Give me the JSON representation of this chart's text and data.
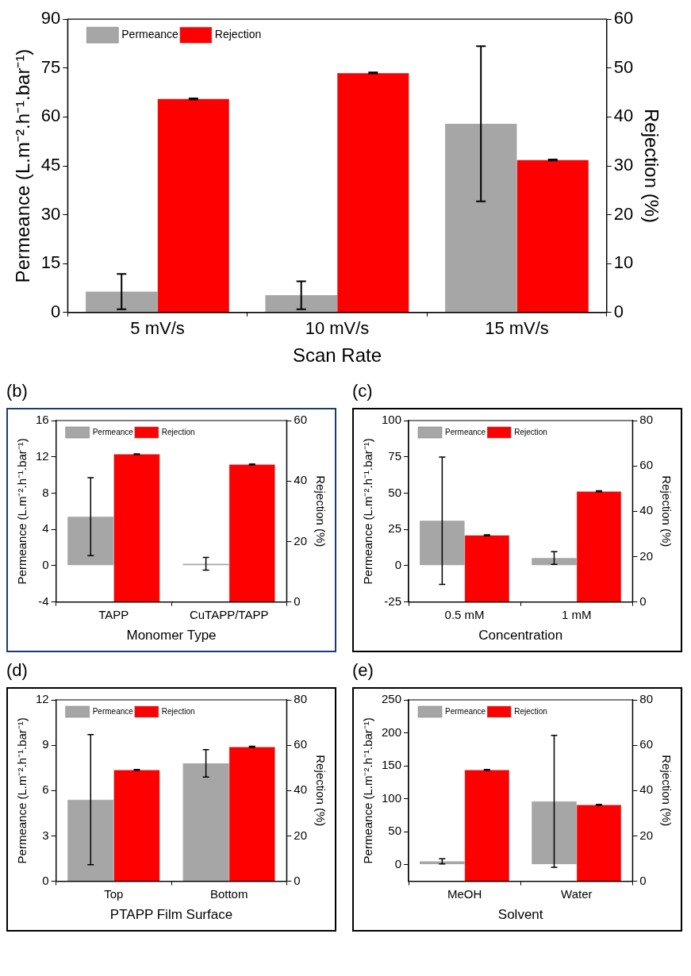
{
  "chart_data": [
    {
      "type": "bar",
      "categories": [
        "5 mV/s",
        "10 mV/s",
        "15 mV/s"
      ],
      "xlabel": "Scan Rate",
      "ylabel": "Permeance (L.m⁻².h⁻¹.bar⁻¹)",
      "y2label": "Rejection (%)",
      "ylim": [
        0,
        90
      ],
      "yticks": [
        0,
        15,
        30,
        45,
        60,
        75,
        90
      ],
      "y2lim": [
        0,
        60
      ],
      "y2ticks": [
        0,
        10,
        20,
        30,
        40,
        50,
        60
      ],
      "legend": "top left",
      "grid": false,
      "series": [
        {
          "name": "Permeance",
          "color": "#a6a6a6",
          "values": [
            6.4,
            5.3,
            57.9
          ],
          "errors": [
            5.4,
            4.3,
            23.8
          ]
        },
        {
          "name": "Rejection",
          "color": "#ff0000",
          "values": [
            43.7,
            49.0,
            31.2
          ],
          "errors": [
            0.1,
            0.1,
            0.1
          ],
          "axis": "y2"
        }
      ]
    },
    {
      "type": "bar",
      "title": "(b)",
      "categories": [
        "TAPP",
        "CuTAPP/TAPP"
      ],
      "xlabel": "Monomer Type",
      "ylabel": "Permeance (L.m⁻².h⁻¹.bar⁻¹)",
      "y2label": "Rejection (%)",
      "ylim": [
        -4,
        16
      ],
      "yticks": [
        -4,
        0,
        4,
        8,
        12,
        16
      ],
      "y2lim": [
        0,
        60
      ],
      "y2ticks": [
        0,
        20,
        40,
        60
      ],
      "legend": "top left",
      "grid": false,
      "series": [
        {
          "name": "Permeance",
          "color": "#a6a6a6",
          "values": [
            5.4,
            0.2
          ],
          "errors": [
            4.3,
            0.7
          ]
        },
        {
          "name": "Rejection",
          "color": "#ff0000",
          "values": [
            48.9,
            45.5
          ],
          "errors": [
            0.1,
            0.1
          ],
          "axis": "y2"
        }
      ]
    },
    {
      "type": "bar",
      "title": "(c)",
      "categories": [
        "0.5 mM",
        "1 mM"
      ],
      "xlabel": "Concentration",
      "ylabel": "Permeance (L.m⁻².h⁻¹.bar⁻¹)",
      "y2label": "Rejection (%)",
      "ylim": [
        -25,
        100
      ],
      "yticks": [
        -25,
        0,
        25,
        50,
        75,
        100
      ],
      "y2lim": [
        0,
        80
      ],
      "y2ticks": [
        0,
        20,
        40,
        60,
        80
      ],
      "legend": "top left",
      "grid": false,
      "series": [
        {
          "name": "Permeance",
          "color": "#a6a6a6",
          "values": [
            31.0,
            5.3
          ],
          "errors": [
            43.9,
            4.4
          ]
        },
        {
          "name": "Rejection",
          "color": "#ff0000",
          "values": [
            29.4,
            48.8
          ],
          "errors": [
            0.2,
            0.2
          ],
          "axis": "y2"
        }
      ]
    },
    {
      "type": "bar",
      "title": "(d)",
      "categories": [
        "Top",
        "Bottom"
      ],
      "xlabel": "PTAPP Film Surface",
      "ylabel": "Permeance (L.m⁻².h⁻¹.bar⁻¹)",
      "y2label": "Rejection (%)",
      "ylim": [
        0,
        12
      ],
      "yticks": [
        0,
        3,
        6,
        9,
        12
      ],
      "y2lim": [
        0,
        80
      ],
      "y2ticks": [
        0,
        20,
        40,
        60,
        80
      ],
      "legend": "top left",
      "grid": false,
      "series": [
        {
          "name": "Permeance",
          "color": "#a6a6a6",
          "values": [
            5.4,
            7.8
          ],
          "errors": [
            4.3,
            0.9
          ]
        },
        {
          "name": "Rejection",
          "color": "#ff0000",
          "values": [
            49.1,
            59.3
          ],
          "errors": [
            0.2,
            0.2
          ],
          "axis": "y2"
        }
      ]
    },
    {
      "type": "bar",
      "title": "(e)",
      "categories": [
        "MeOH",
        "Water"
      ],
      "xlabel": "Solvent",
      "ylabel": "Permeance (L.m⁻².h⁻¹.bar⁻¹)",
      "y2label": "Rejection (%)",
      "ylim": [
        -25,
        250
      ],
      "yticks": [
        0,
        50,
        100,
        150,
        200,
        250
      ],
      "y2lim": [
        0,
        80
      ],
      "y2ticks": [
        0,
        20,
        40,
        60,
        80
      ],
      "legend": "top left",
      "grid": false,
      "series": [
        {
          "name": "Permeance",
          "color": "#a6a6a6",
          "values": [
            5.2,
            96.2
          ],
          "errors": [
            3.9,
            100
          ]
        },
        {
          "name": "Rejection",
          "color": "#ff0000",
          "values": [
            49.1,
            33.7
          ],
          "errors": [
            0.2,
            0.2
          ],
          "axis": "y2"
        }
      ]
    }
  ]
}
